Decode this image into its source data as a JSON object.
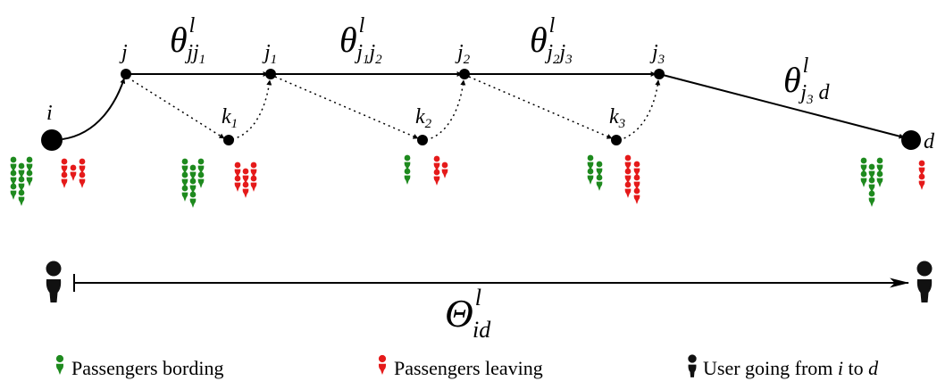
{
  "colors": {
    "boarding": "#1e8a1e",
    "leaving": "#e51a1a",
    "user": "#111111",
    "line": "#000000"
  },
  "nodes": {
    "i": {
      "letter": "i",
      "sub": ""
    },
    "j": {
      "letter": "j",
      "sub": ""
    },
    "j1": {
      "letter": "j",
      "sub": "1"
    },
    "j2": {
      "letter": "j",
      "sub": "2"
    },
    "j3": {
      "letter": "j",
      "sub": "3"
    },
    "k1": {
      "letter": "k",
      "sub": "1"
    },
    "k2": {
      "letter": "k",
      "sub": "2"
    },
    "k3": {
      "letter": "k",
      "sub": "3"
    },
    "d": {
      "letter": "d",
      "sub": ""
    }
  },
  "edge_labels": {
    "theta_j_j1": {
      "symbol": "θ",
      "sup": "l",
      "sub_main": "jj",
      "sub_sub": "1",
      "sub_main2": "",
      "sub_sub2": ""
    },
    "theta_j1_j2": {
      "symbol": "θ",
      "sup": "l",
      "sub_main": "j",
      "sub_sub": "1",
      "sub_main2": "j",
      "sub_sub2": "2"
    },
    "theta_j2_j3": {
      "symbol": "θ",
      "sup": "l",
      "sub_main": "j",
      "sub_sub": "2",
      "sub_main2": "j",
      "sub_sub2": "3"
    },
    "theta_j3_d": {
      "symbol": "θ",
      "sup": "l",
      "sub_main": "j",
      "sub_sub": "3",
      "sub_main2": " d",
      "sub_sub2": ""
    },
    "Theta_id": {
      "symbol": "Θ",
      "sup": "l",
      "sub_main": "id"
    }
  },
  "passenger_counts": {
    "i": {
      "boarding": 8,
      "leaving": 5
    },
    "k1": {
      "boarding": 8,
      "leaving": 6
    },
    "k2": {
      "boarding": 2,
      "leaving": 3
    },
    "k3": {
      "boarding": 4,
      "leaving": 6
    },
    "d": {
      "boarding": 7,
      "leaving": 2
    }
  },
  "legend": {
    "boarding": "Passengers bording",
    "leaving": "Passengers leaving",
    "user_prefix": "User going from ",
    "user_i": "i",
    "user_mid": " to ",
    "user_d": "d"
  },
  "icons": {
    "passenger": "person-pin-icon",
    "user": "person-icon"
  }
}
